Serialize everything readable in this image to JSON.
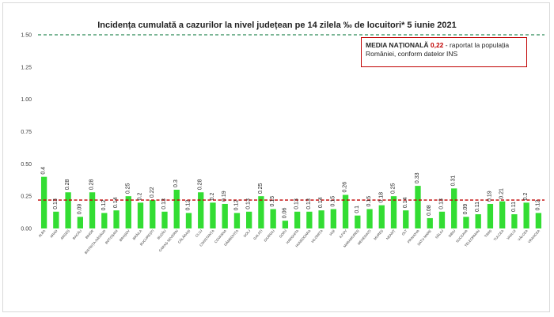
{
  "title": "Incidența cumulată a cazurilor la nivel județean pe 14 zilela ‰ de locuitori* 5 iunie 2021",
  "legend_box": {
    "label": "MEDIA NAȚIONALĂ",
    "value": "0,22",
    "text": " - raportat la populația României, conform datelor INS"
  },
  "colors": {
    "bar": "#33dd33",
    "average_line": "#c00000",
    "threshold_line": "#2e8b57",
    "value_label": "#262626",
    "axis_text": "#404040"
  },
  "chart_data": {
    "type": "bar",
    "title": "Incidența cumulată a cazurilor la nivel județean pe 14 zilela ‰ de locuitori* 5 iunie 2021",
    "categories": [
      "ALBA",
      "ARAD",
      "ARGEȘ",
      "BACĂU",
      "BIHOR",
      "BISTRIȚA-NĂSĂUD",
      "BOTOȘANI",
      "BRAȘOV",
      "BRĂILA",
      "BUCUREȘTI",
      "BUZĂU",
      "CARAȘ-SEVERIN",
      "CĂLĂRAȘI",
      "CLUJ",
      "CONSTANȚA",
      "COVASNA",
      "DÂMBOVIȚA",
      "DOLJ",
      "GALAȚI",
      "GIURGIU",
      "GORJ",
      "HARGHITA",
      "HUNEDOARA",
      "IALOMIȚA",
      "IAȘI",
      "ILFOV",
      "MARAMUREȘ",
      "MEHEDINȚI",
      "MUREȘ",
      "NEAMȚ",
      "OLT",
      "PRAHOVA",
      "SATU MARE",
      "SĂLAJ",
      "SIBIU",
      "SUCEAVA",
      "TELEORMAN",
      "TIMIȘ",
      "TULCEA",
      "VASLUI",
      "VÂLCEA",
      "VRANCEA"
    ],
    "values": [
      0.4,
      0.13,
      0.28,
      0.09,
      0.28,
      0.12,
      0.14,
      0.25,
      0.2,
      0.22,
      0.13,
      0.3,
      0.12,
      0.28,
      0.2,
      0.19,
      0.12,
      0.13,
      0.25,
      0.15,
      0.06,
      0.13,
      0.13,
      0.14,
      0.15,
      0.26,
      0.1,
      0.15,
      0.18,
      0.25,
      0.14,
      0.33,
      0.08,
      0.13,
      0.31,
      0.09,
      0.11,
      0.19,
      0.21,
      0.11,
      0.2,
      0.12
    ],
    "value_labels": [
      "0.4",
      "0.13",
      "0.28",
      "0.09",
      "0.28",
      "0.12",
      "0.14",
      "0.25",
      "0.2",
      "0.22",
      "0.13",
      "0.3",
      "0.12",
      "0.28",
      "0.2",
      "0.19",
      "0.12",
      "0.13",
      "0.25",
      "0.15",
      "0.06",
      "0.13",
      "0.13",
      "0.14",
      "0.15",
      "0.26",
      "0.1",
      "0.15",
      "0.18",
      "0.25",
      "0.14",
      "0.33",
      "0.08",
      "0.13",
      "0.31",
      "0.09",
      "0.11",
      "0.19",
      "0.21",
      "0.11",
      "0.2",
      "0.12"
    ],
    "yticks": [
      "0.00",
      "0.25",
      "0.50",
      "0.75",
      "1.00",
      "1.25",
      "1.50"
    ],
    "ylim": [
      0,
      1.5
    ],
    "average_line": 0.22,
    "threshold_line": 1.5,
    "grid": false
  }
}
